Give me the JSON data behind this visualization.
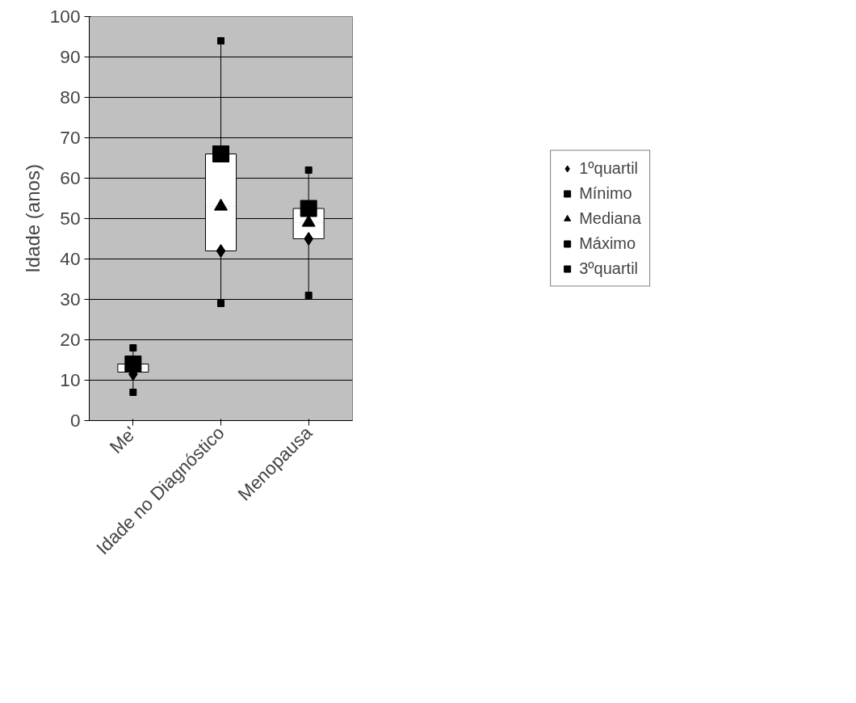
{
  "chart_data": {
    "type": "box",
    "ylabel": "Idade (anos)",
    "categories": [
      "Me'",
      "Idade no Diagnóstico",
      "Menopausa"
    ],
    "boxes": [
      {
        "low": 7,
        "q1": 12,
        "median": 13,
        "q3": 14,
        "high": 18
      },
      {
        "low": 29,
        "q1": 42,
        "median": 53,
        "q3": 66,
        "high": 94
      },
      {
        "low": 31,
        "q1": 45,
        "median": 49,
        "q3": 52.5,
        "high": 62
      }
    ],
    "series": [
      {
        "name": "1ºquartil",
        "type": "scatter",
        "marker": "diamond",
        "color": "#000000",
        "x": [
          "Me'",
          "Idade no Diagnóstico",
          "Menopausa"
        ],
        "values": [
          11.5,
          42,
          45
        ]
      },
      {
        "name": "Mínimo",
        "type": "scatter",
        "marker": "square",
        "color": "#000000",
        "x": [
          "Me'",
          "Idade no Diagnóstico",
          "Menopausa"
        ],
        "values": [
          7,
          29,
          31
        ]
      },
      {
        "name": "Mediana",
        "type": "scatter",
        "marker": "triangle",
        "color": "#000000",
        "x": [
          "Me'",
          "Idade no Diagnóstico",
          "Menopausa"
        ],
        "values": [
          null,
          53,
          49
        ]
      },
      {
        "name": "Máximo",
        "type": "scatter",
        "marker": "square",
        "color": "#000000",
        "x": [
          "Me'",
          "Idade no Diagnóstico",
          "Menopausa"
        ],
        "values": [
          18,
          94,
          62
        ]
      },
      {
        "name": "3ºquartil",
        "type": "scatter",
        "marker": "square",
        "color": "#000000",
        "x": [
          "Me'",
          "Idade no Diagnóstico",
          "Menopausa"
        ],
        "values": [
          14,
          66,
          52.5
        ]
      }
    ],
    "ylim": [
      0,
      100
    ],
    "yticks": [
      0,
      10,
      20,
      30,
      40,
      50,
      60,
      70,
      80,
      90,
      100
    ],
    "grid": "y",
    "legend": "right"
  }
}
